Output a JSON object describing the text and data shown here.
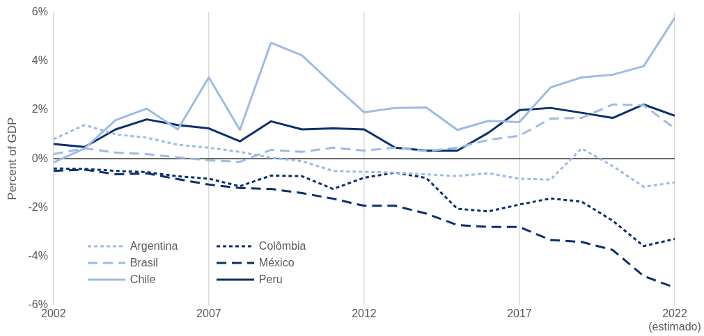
{
  "chart_data": {
    "type": "line",
    "ylabel": "Percent of GDP",
    "x": [
      2002,
      2003,
      2004,
      2005,
      2006,
      2007,
      2008,
      2009,
      2010,
      2011,
      2012,
      2013,
      2014,
      2015,
      2016,
      2017,
      2018,
      2019,
      2020,
      2021,
      2022
    ],
    "xlim": [
      2002,
      2022
    ],
    "xticks": [
      2002,
      2007,
      2012,
      2017,
      {
        "value": 2022,
        "label": "2022\n(estimado)"
      }
    ],
    "ylim": [
      -6,
      6
    ],
    "yticks": [
      {
        "value": -6,
        "label": "-6%"
      },
      {
        "value": -4,
        "label": "-4%"
      },
      {
        "value": -2,
        "label": "-2%"
      },
      {
        "value": 0,
        "label": "0%"
      },
      {
        "value": 2,
        "label": "2%"
      },
      {
        "value": 4,
        "label": "4%"
      },
      {
        "value": 6,
        "label": "6%"
      }
    ],
    "grid": "x",
    "legend": "bottom left",
    "marker": "none",
    "ref_lines": [
      {
        "axis": "y",
        "value": 0,
        "color": "#000000"
      }
    ],
    "series": [
      {
        "name": "Argentina",
        "color": "#9dbbe6",
        "line_style": "dotted",
        "values": [
          0.8,
          1.38,
          1.0,
          0.86,
          0.57,
          0.45,
          0.28,
          0.04,
          -0.1,
          -0.5,
          -0.54,
          -0.57,
          -0.64,
          -0.71,
          -0.6,
          -0.82,
          -0.86,
          0.42,
          -0.3,
          -1.15,
          -0.97
        ]
      },
      {
        "name": "Brasil",
        "color": "#9dbbe6",
        "line_style": "dashed",
        "values": [
          0.19,
          0.42,
          0.25,
          0.19,
          0.05,
          -0.07,
          -0.13,
          0.36,
          0.28,
          0.45,
          0.33,
          0.45,
          0.31,
          0.45,
          0.77,
          0.94,
          1.64,
          1.67,
          2.22,
          2.19,
          1.24
        ]
      },
      {
        "name": "Chile",
        "color": "#9dbbe6",
        "line_style": "solid",
        "values": [
          -0.16,
          0.42,
          1.58,
          2.05,
          1.2,
          3.33,
          1.18,
          4.75,
          4.23,
          3.04,
          1.9,
          2.08,
          2.1,
          1.18,
          1.55,
          1.5,
          2.92,
          3.33,
          3.44,
          3.79,
          5.77
        ]
      },
      {
        "name": "Colômbia",
        "color": "#0a2f6e",
        "line_style": "dotted",
        "values": [
          -0.4,
          -0.42,
          -0.5,
          -0.55,
          -0.72,
          -0.82,
          -1.13,
          -0.69,
          -0.72,
          -1.24,
          -0.78,
          -0.57,
          -0.79,
          -2.05,
          -2.16,
          -1.88,
          -1.63,
          -1.76,
          -2.54,
          -3.58,
          -3.29
        ]
      },
      {
        "name": "México",
        "color": "#0a2f6e",
        "line_style": "dashed",
        "values": [
          -0.5,
          -0.45,
          -0.64,
          -0.6,
          -0.84,
          -1.06,
          -1.2,
          -1.24,
          -1.41,
          -1.64,
          -1.93,
          -1.93,
          -2.25,
          -2.72,
          -2.8,
          -2.8,
          -3.33,
          -3.41,
          -3.74,
          -4.81,
          -5.28
        ]
      },
      {
        "name": "Peru",
        "color": "#0a2f6e",
        "line_style": "solid",
        "values": [
          0.6,
          0.48,
          1.2,
          1.61,
          1.38,
          1.24,
          0.71,
          1.53,
          1.2,
          1.24,
          1.2,
          0.45,
          0.33,
          0.33,
          1.06,
          1.99,
          2.08,
          1.88,
          1.67,
          2.22,
          1.76
        ]
      }
    ]
  }
}
